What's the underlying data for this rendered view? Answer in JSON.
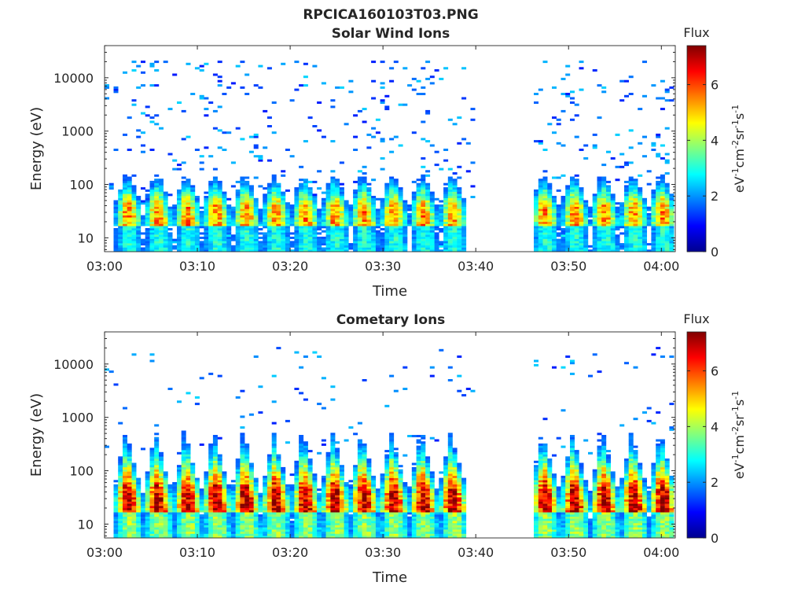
{
  "figure_title": "RPCICA160103T03.PNG",
  "chart_data": [
    {
      "type": "heatmap",
      "title": "Solar Wind Ions",
      "xlabel": "Time",
      "ylabel": "Energy (eV)",
      "x_ticks": [
        "03:00",
        "03:10",
        "03:20",
        "03:30",
        "03:40",
        "03:50",
        "04:00"
      ],
      "x_range_minutes": [
        0,
        61.5
      ],
      "y_scale": "log",
      "y_ticks": [
        "10",
        "100",
        "1000",
        "10000"
      ],
      "y_range": [
        5.5,
        40000
      ],
      "colorbar": {
        "title": "Flux",
        "label": "eV-1cm-2sr-1s-1",
        "ticks": [
          "0",
          "2",
          "4",
          "6"
        ],
        "range": [
          0,
          7.4
        ],
        "colormap": "jet"
      },
      "data_gap_minutes": [
        39.5,
        45.8
      ],
      "burst_centers_minutes": [
        2.3,
        5.5,
        8.7,
        11.8,
        15.0,
        18.2,
        21.4,
        24.6,
        27.7,
        30.9,
        34.1,
        37.3,
        47.2,
        50.4,
        53.6,
        56.8,
        59.9
      ],
      "burst_peak_energy_eV": 35,
      "peak_flux": 5.6,
      "background_max_energy_eV": 20000
    },
    {
      "type": "heatmap",
      "title": "Cometary Ions",
      "xlabel": "Time",
      "ylabel": "Energy (eV)",
      "x_ticks": [
        "03:00",
        "03:10",
        "03:20",
        "03:30",
        "03:40",
        "03:50",
        "04:00"
      ],
      "x_range_minutes": [
        0,
        61.5
      ],
      "y_scale": "log",
      "y_ticks": [
        "10",
        "100",
        "1000",
        "10000"
      ],
      "y_range": [
        5.5,
        40000
      ],
      "colorbar": {
        "title": "Flux",
        "label": "eV-1cm-2sr-1s-1",
        "ticks": [
          "0",
          "2",
          "4",
          "6"
        ],
        "range": [
          0,
          7.4
        ],
        "colormap": "jet"
      },
      "data_gap_minutes": [
        39.5,
        45.8
      ],
      "burst_centers_minutes": [
        2.3,
        5.5,
        8.7,
        11.8,
        15.0,
        18.2,
        21.4,
        24.6,
        27.7,
        30.9,
        34.1,
        37.3,
        47.2,
        50.4,
        53.6,
        56.8,
        59.9
      ],
      "burst_peak_energy_eV": 35,
      "peak_flux": 7.3,
      "background_max_energy_eV": 20000
    }
  ]
}
